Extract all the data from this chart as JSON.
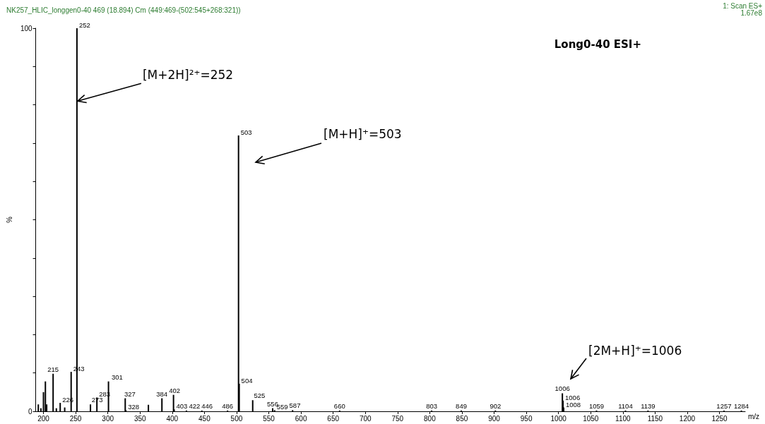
{
  "chart_data": {
    "type": "bar",
    "title": "Long0-40 ESI+",
    "subtitle": "NK257_HLIC_longgen0-40 469 (18.894) Cm (449:469-(502:545+268:321))",
    "xlabel": "m/z",
    "ylabel": "%",
    "x": [
      192,
      196,
      200,
      203,
      205,
      215,
      220,
      226,
      233,
      243,
      252,
      273,
      283,
      301,
      327,
      328,
      363,
      384,
      402,
      403,
      422,
      446,
      486,
      503,
      504,
      525,
      556,
      559,
      587,
      660,
      803,
      849,
      902,
      1006,
      1007,
      1008,
      1059,
      1104,
      1139,
      1257,
      1284
    ],
    "values": [
      1.8,
      0.8,
      5,
      7.8,
      1.8,
      9.8,
      0.8,
      2.2,
      1,
      10.3,
      100,
      1.8,
      3.6,
      7.8,
      3.4,
      0.3,
      1.7,
      3.4,
      4.3,
      0.5,
      0.2,
      0.2,
      0.2,
      72,
      7.2,
      2.9,
      0.8,
      0.3,
      0.3,
      0.2,
      0.2,
      0.2,
      0.2,
      4.7,
      2.8,
      1,
      0.2,
      0.2,
      0.2,
      0.2,
      0.2
    ],
    "color": "#000000",
    "xlim": [
      188,
      1290
    ],
    "xticks": [
      200,
      250,
      300,
      350,
      400,
      450,
      500,
      550,
      600,
      650,
      700,
      750,
      800,
      850,
      900,
      950,
      1000,
      1050,
      1100,
      1150,
      1200,
      1250
    ],
    "ylim": [
      0,
      100
    ],
    "yticks": [
      0,
      {
        "value": 10,
        "label": null
      },
      {
        "value": 20,
        "label": null
      },
      {
        "value": 30,
        "label": null
      },
      {
        "value": 40,
        "label": null
      },
      {
        "value": 50,
        "label": null
      },
      {
        "value": 60,
        "label": null
      },
      {
        "value": 70,
        "label": null
      },
      {
        "value": 80,
        "label": null
      },
      {
        "value": 90,
        "label": null
      },
      100
    ],
    "grid": false,
    "annotations": [
      {
        "text": "[M+2H]²⁺=252",
        "x": 252,
        "y": 81
      },
      "[M+H]⁺=503",
      "[2M+H]⁺=1006",
      "1: Scan ES+",
      "1.67e8",
      {
        "text": "215",
        "x": 215,
        "y": 9.8
      },
      {
        "text": "226",
        "x": 226,
        "y": 2.2
      },
      {
        "text": "243",
        "x": 243,
        "y": 10.3
      },
      {
        "text": "252",
        "x": 252,
        "y": 100
      },
      {
        "text": "273",
        "x": 273,
        "y": 1.8
      },
      {
        "text": "283",
        "x": 283,
        "y": 3.6
      },
      {
        "text": "301",
        "x": 301,
        "y": 7.8
      },
      {
        "text": "327",
        "x": 327,
        "y": 3.4
      },
      {
        "text": "328",
        "x": 328,
        "y": 0.3
      },
      {
        "text": "384",
        "x": 384,
        "y": 3.4
      },
      {
        "text": "402",
        "x": 402,
        "y": 4.3
      },
      {
        "text": "403",
        "x": 403,
        "y": 0.5
      },
      {
        "text": "422",
        "x": 422,
        "y": 0.2
      },
      {
        "text": "446",
        "x": 446,
        "y": 0.2
      },
      {
        "text": "486",
        "x": 486,
        "y": 0.2
      },
      {
        "text": "503",
        "x": 503,
        "y": 72
      },
      {
        "text": "504",
        "x": 504,
        "y": 7.2
      },
      {
        "text": "525",
        "x": 525,
        "y": 2.9
      },
      {
        "text": "556",
        "x": 556,
        "y": 0.8
      },
      {
        "text": "559",
        "x": 559,
        "y": 0.3
      },
      {
        "text": "587",
        "x": 587,
        "y": 0.3
      },
      {
        "text": "660",
        "x": 660,
        "y": 0.2
      },
      {
        "text": "803",
        "x": 803,
        "y": 0.2
      },
      {
        "text": "849",
        "x": 849,
        "y": 0.2
      },
      {
        "text": "902",
        "x": 902,
        "y": 0.2
      },
      {
        "text": "1006",
        "x": 1006,
        "y": 4.7
      },
      {
        "text": "1006",
        "x": 1007,
        "y": 2.8
      },
      {
        "text": "1008",
        "x": 1008,
        "y": 1
      },
      {
        "text": "1059",
        "x": 1059,
        "y": 0.2
      },
      {
        "text": "1104",
        "x": 1104,
        "y": 0.2
      },
      {
        "text": "1139",
        "x": 1139,
        "y": 0.2
      },
      {
        "text": "1257",
        "x": 1257,
        "y": 0.2
      },
      {
        "text": "1284",
        "x": 1284,
        "y": 0.2
      }
    ]
  }
}
